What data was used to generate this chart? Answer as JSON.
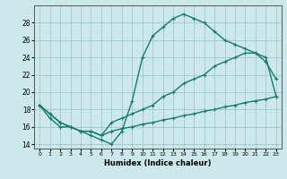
{
  "xlabel": "Humidex (Indice chaleur)",
  "bg_color": "#cce8ea",
  "grid_color": "#9fc8cc",
  "line_color": "#1a7a6e",
  "line1_x": [
    0,
    1,
    2,
    3,
    4,
    5,
    6,
    7,
    8,
    9,
    10,
    11,
    12,
    13,
    14,
    15,
    16,
    17,
    18,
    19,
    20,
    21,
    22,
    23
  ],
  "line1_y": [
    18.5,
    17.0,
    16.0,
    16.0,
    15.5,
    15.0,
    14.5,
    14.0,
    15.5,
    19.0,
    24.0,
    26.5,
    27.5,
    28.5,
    29.0,
    28.5,
    28.0,
    27.0,
    26.0,
    25.5,
    25.0,
    24.5,
    23.5,
    21.5
  ],
  "line2_x": [
    0,
    1,
    2,
    3,
    4,
    5,
    6,
    7,
    8,
    9,
    10,
    11,
    12,
    13,
    14,
    15,
    16,
    17,
    18,
    19,
    20,
    21,
    22,
    23
  ],
  "line2_y": [
    18.5,
    17.5,
    16.5,
    16.0,
    15.5,
    15.5,
    15.0,
    16.5,
    17.0,
    17.5,
    18.0,
    18.5,
    19.5,
    20.0,
    21.0,
    21.5,
    22.0,
    23.0,
    23.5,
    24.0,
    24.5,
    24.5,
    24.0,
    19.5
  ],
  "line3_x": [
    0,
    1,
    2,
    3,
    4,
    5,
    6,
    7,
    8,
    9,
    10,
    11,
    12,
    13,
    14,
    15,
    16,
    17,
    18,
    19,
    20,
    21,
    22,
    23
  ],
  "line3_y": [
    18.5,
    17.5,
    16.5,
    16.0,
    15.5,
    15.5,
    15.0,
    15.5,
    15.8,
    16.0,
    16.3,
    16.5,
    16.8,
    17.0,
    17.3,
    17.5,
    17.8,
    18.0,
    18.3,
    18.5,
    18.8,
    19.0,
    19.2,
    19.5
  ],
  "xlim": [
    -0.5,
    23.5
  ],
  "ylim": [
    13.5,
    30.0
  ],
  "yticks": [
    14,
    16,
    18,
    20,
    22,
    24,
    26,
    28
  ],
  "xticks": [
    0,
    1,
    2,
    3,
    4,
    5,
    6,
    7,
    8,
    9,
    10,
    11,
    12,
    13,
    14,
    15,
    16,
    17,
    18,
    19,
    20,
    21,
    22,
    23
  ]
}
